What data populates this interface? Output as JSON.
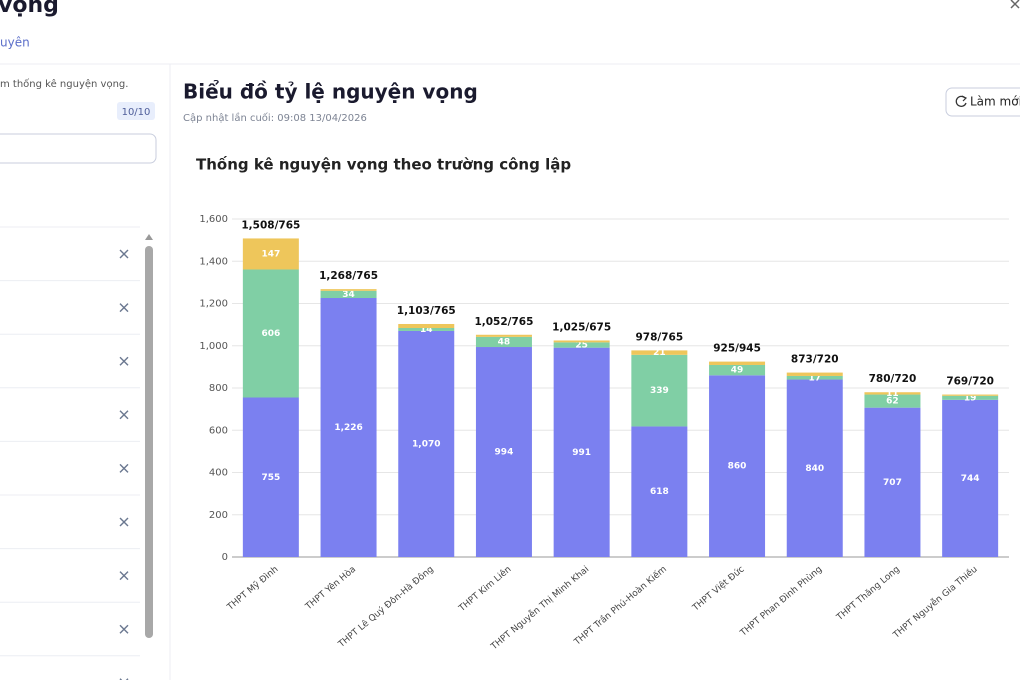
{
  "ui": {
    "header_title": "vọng",
    "tab": "uyên",
    "description": "m thống kê nguyện vọng.",
    "badge": "10/10",
    "panel_title": "Biểu đồ tỷ lệ nguyện vọng",
    "updated": "Cập nhật lần cuối: 09:08 13/04/2026",
    "refresh_button": "Làm mới"
  },
  "chart_data": {
    "type": "stacked_bar",
    "title": "Thống kê nguyện vọng theo trường công lập",
    "categories": [
      "THPT Mỹ Đình",
      "THPT Yên Hòa",
      "THPT Lê Quý Đôn-Hà Đông",
      "THPT Kim Liên",
      "THPT Nguyễn Thị Minh Khai",
      "THPT Trần Phú-Hoàn Kiếm",
      "THPT Việt Đức",
      "THPT Phan Đình Phùng",
      "THPT Thăng Long",
      "THPT Nguyễn Gia Thiều"
    ],
    "series": [
      {
        "color": "#7b80f0",
        "values": [
          755,
          1226,
          1070,
          994,
          991,
          618,
          860,
          840,
          707,
          744
        ],
        "value_labels": [
          "755",
          "1,226",
          "1,070",
          "994",
          "991",
          "618",
          "860",
          "840",
          "707",
          "744"
        ]
      },
      {
        "color": "#80cfa5",
        "values": [
          606,
          34,
          14,
          48,
          25,
          339,
          49,
          17,
          62,
          19
        ],
        "value_labels": [
          "606",
          "34",
          "14",
          "48",
          "25",
          "339",
          "49",
          "17",
          "62",
          "19"
        ]
      },
      {
        "color": "#eec65b",
        "values": [
          147,
          8,
          19,
          10,
          9,
          21,
          16,
          16,
          11,
          6
        ],
        "value_labels": [
          "147",
          null,
          null,
          null,
          null,
          "21",
          null,
          null,
          "11",
          null
        ]
      }
    ],
    "total_labels": [
      "1,508/765",
      "1,268/765",
      "1,103/765",
      "1,052/765",
      "1,025/675",
      "978/765",
      "925/945",
      "873/720",
      "780/720",
      "769/720"
    ],
    "ylim": [
      0,
      1600
    ],
    "yticks": [
      0,
      200,
      400,
      600,
      800,
      {
        "value": 1000,
        "label": "1,000"
      },
      {
        "value": 1200,
        "label": "1,200"
      },
      {
        "value": 1400,
        "label": "1,400"
      },
      {
        "value": 1600,
        "label": "1,600"
      }
    ],
    "grid": true
  }
}
